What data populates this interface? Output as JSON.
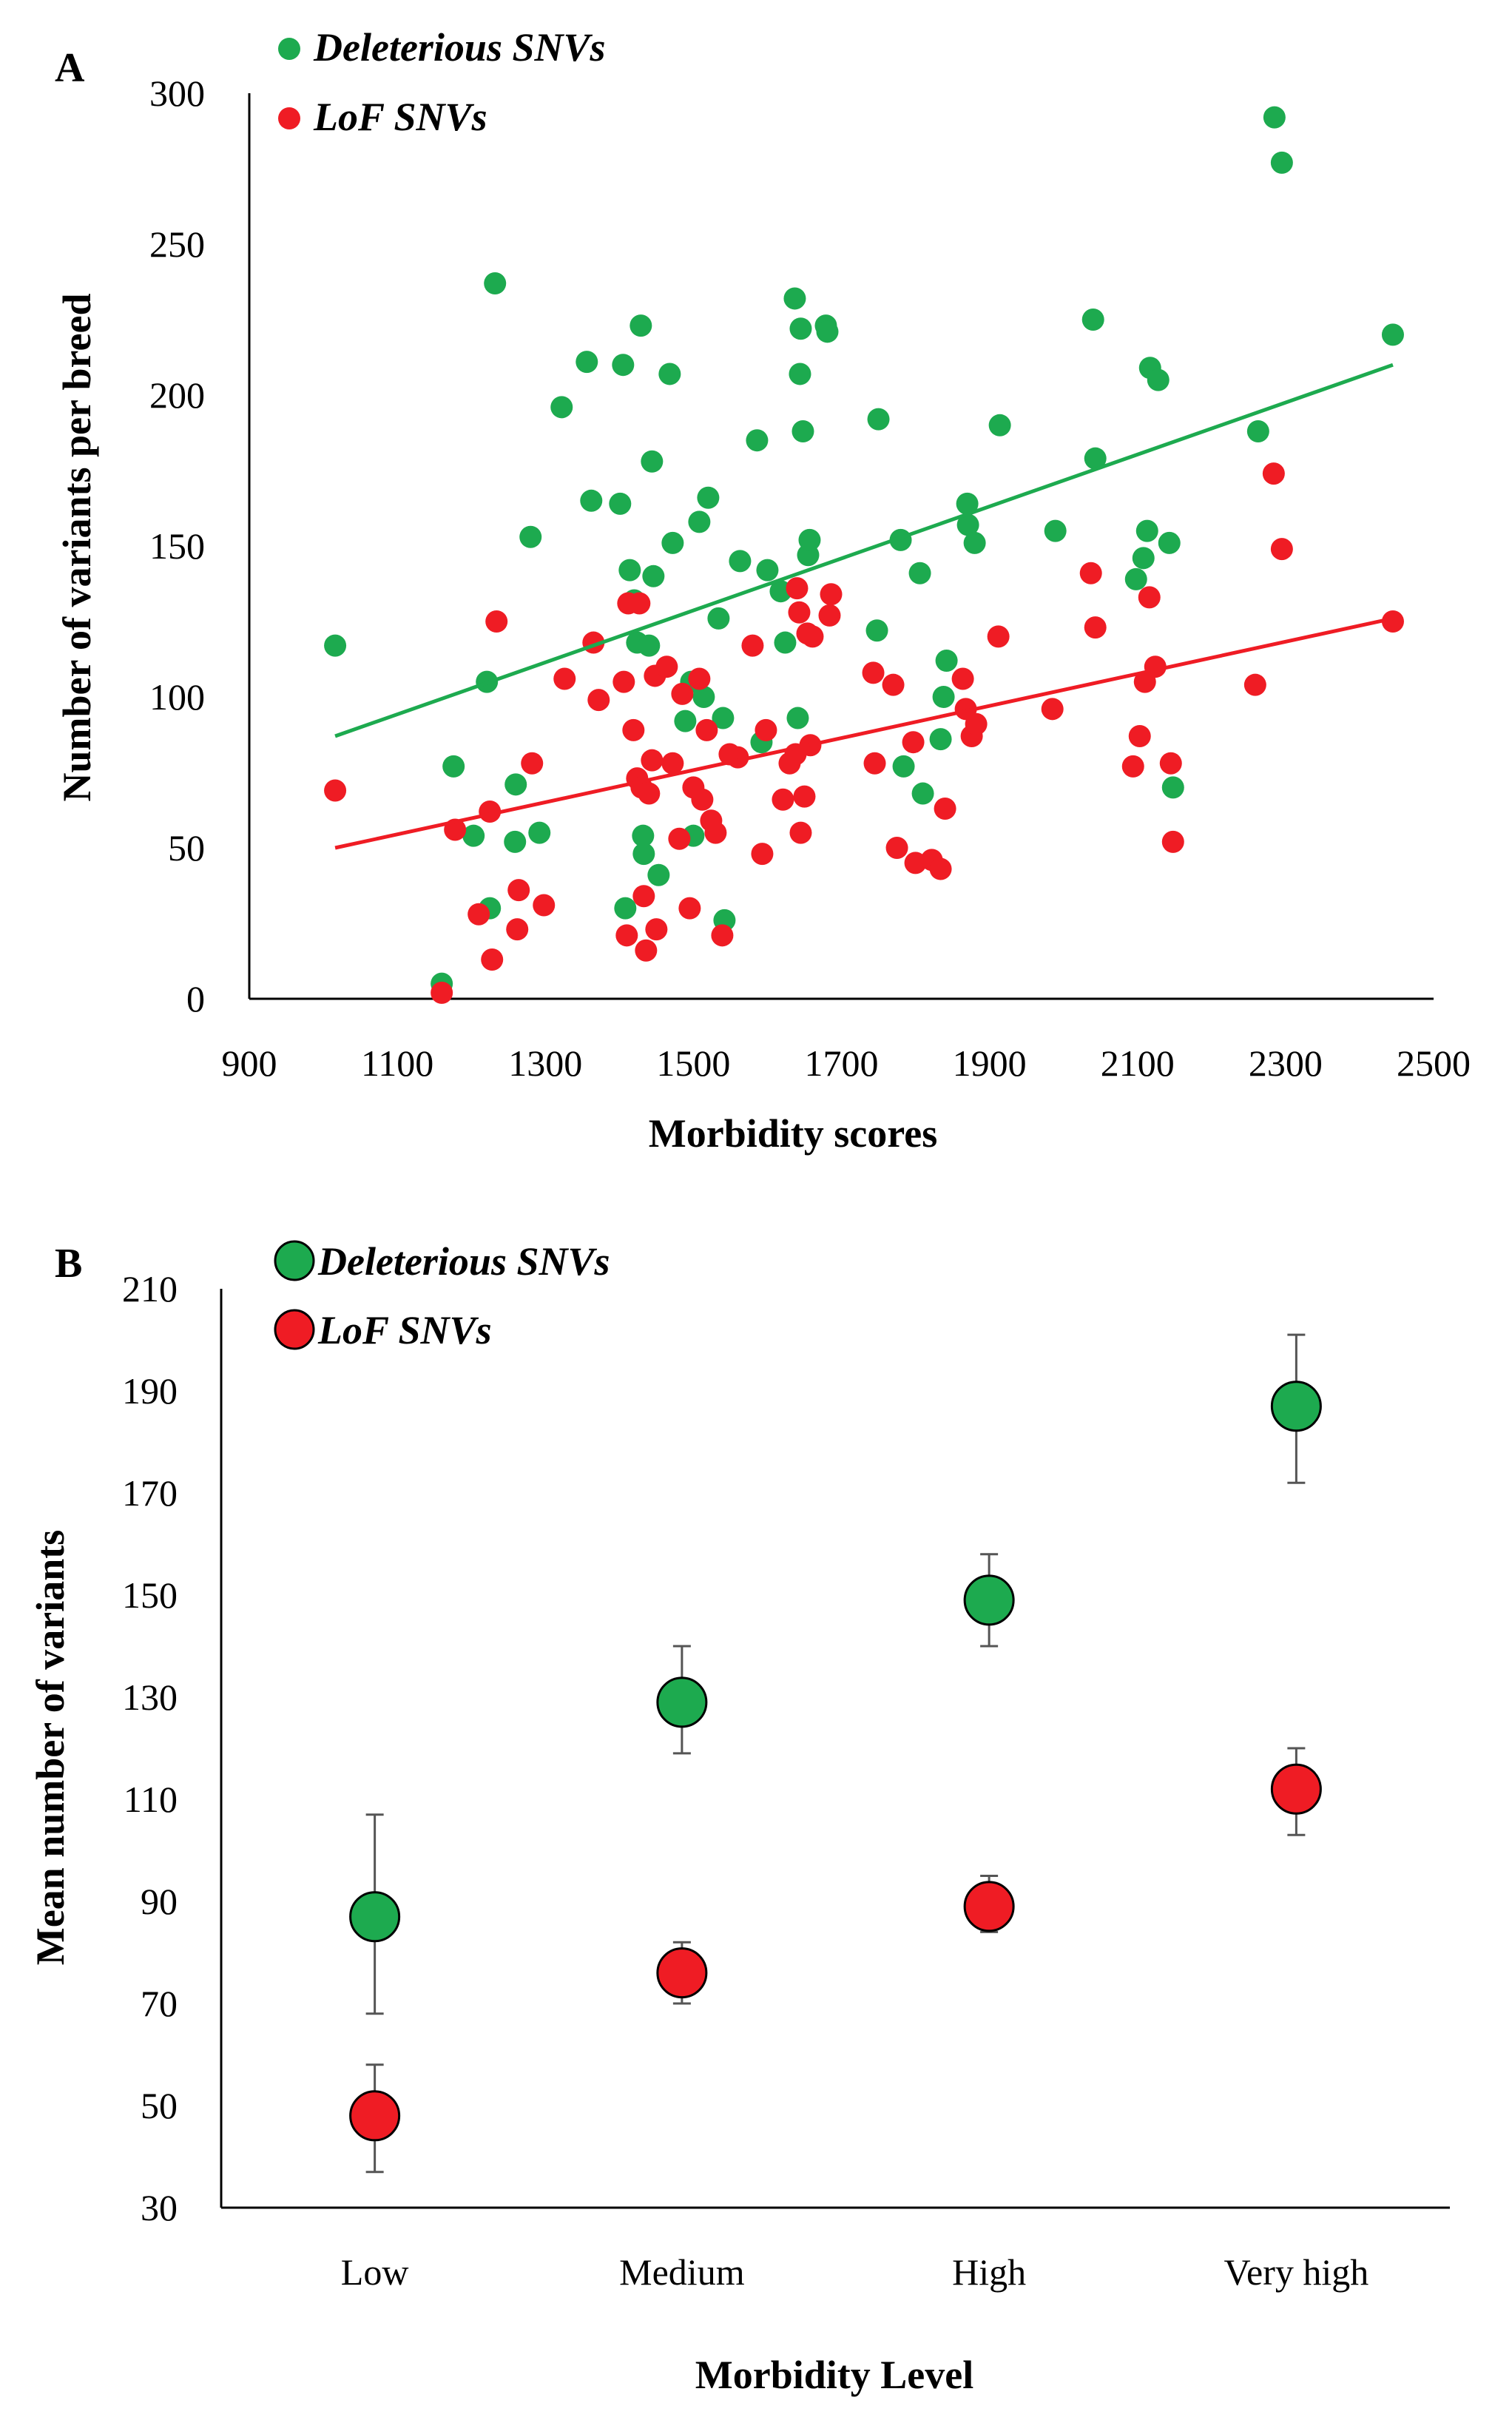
{
  "panel_a": {
    "label": "A"
  },
  "panel_b": {
    "label": "B"
  },
  "colors": {
    "deleterious": "#1daa4f",
    "lof": "#ef1c24",
    "axis": "#000000",
    "errorbar": "#555555"
  },
  "chart_data": [
    {
      "type": "scatter",
      "panel": "A",
      "title": "",
      "xlabel": "Morbidity scores",
      "ylabel": "Number of variants per breed",
      "xlim": [
        900,
        2500
      ],
      "ylim": [
        0,
        300
      ],
      "xticks": [
        900,
        1100,
        1300,
        1500,
        1700,
        1900,
        2100,
        2300,
        2500
      ],
      "yticks": [
        0,
        50,
        100,
        150,
        200,
        250,
        300
      ],
      "legend": [
        "Deleterious SNVs",
        "LoF SNVs"
      ],
      "series": [
        {
          "name": "Deleterious SNVs",
          "color": "#1daa4f",
          "trend": [
            [
              1016,
              87
            ],
            [
              2445,
              210
            ]
          ],
          "points": [
            [
              1016,
              117
            ],
            [
              1160,
              5
            ],
            [
              1176,
              77
            ],
            [
              1203,
              54
            ],
            [
              1221,
              105
            ],
            [
              1225,
              30
            ],
            [
              1232,
              237
            ],
            [
              1259,
              52
            ],
            [
              1260,
              71
            ],
            [
              1280,
              153
            ],
            [
              1292,
              55
            ],
            [
              1322,
              196
            ],
            [
              1356,
              211
            ],
            [
              1362,
              165
            ],
            [
              1401,
              164
            ],
            [
              1405,
              210
            ],
            [
              1408,
              30
            ],
            [
              1414,
              142
            ],
            [
              1420,
              132
            ],
            [
              1424,
              118
            ],
            [
              1429,
              223
            ],
            [
              1432,
              54
            ],
            [
              1433,
              48
            ],
            [
              1440,
              117
            ],
            [
              1444,
              178
            ],
            [
              1446,
              140
            ],
            [
              1453,
              41
            ],
            [
              1468,
              207
            ],
            [
              1472,
              151
            ],
            [
              1489,
              92
            ],
            [
              1497,
              105
            ],
            [
              1500,
              54
            ],
            [
              1508,
              158
            ],
            [
              1514,
              100
            ],
            [
              1520,
              166
            ],
            [
              1534,
              126
            ],
            [
              1540,
              93
            ],
            [
              1542,
              26
            ],
            [
              1563,
              145
            ],
            [
              1586,
              185
            ],
            [
              1592,
              85
            ],
            [
              1600,
              142
            ],
            [
              1618,
              135
            ],
            [
              1624,
              118
            ],
            [
              1637,
              232
            ],
            [
              1641,
              93
            ],
            [
              1644,
              207
            ],
            [
              1645,
              222
            ],
            [
              1648,
              188
            ],
            [
              1655,
              147
            ],
            [
              1657,
              152
            ],
            [
              1679,
              223
            ],
            [
              1681,
              221
            ],
            [
              1748,
              122
            ],
            [
              1750,
              192
            ],
            [
              1780,
              152
            ],
            [
              1784,
              77
            ],
            [
              1806,
              141
            ],
            [
              1810,
              68
            ],
            [
              1834,
              86
            ],
            [
              1838,
              100
            ],
            [
              1842,
              112
            ],
            [
              1870,
              164
            ],
            [
              1871,
              157
            ],
            [
              1880,
              151
            ],
            [
              1914,
              190
            ],
            [
              1989,
              155
            ],
            [
              2040,
              225
            ],
            [
              2043,
              179
            ],
            [
              2098,
              139
            ],
            [
              2108,
              146
            ],
            [
              2113,
              155
            ],
            [
              2117,
              209
            ],
            [
              2128,
              205
            ],
            [
              2143,
              151
            ],
            [
              2148,
              70
            ],
            [
              2263,
              188
            ],
            [
              2285,
              292
            ],
            [
              2295,
              277
            ],
            [
              2445,
              220
            ]
          ]
        },
        {
          "name": "LoF SNVs",
          "color": "#ef1c24",
          "trend": [
            [
              1016,
              50
            ],
            [
              2445,
              126
            ]
          ],
          "points": [
            [
              1016,
              69
            ],
            [
              1160,
              2
            ],
            [
              1178,
              56
            ],
            [
              1210,
              28
            ],
            [
              1225,
              62
            ],
            [
              1228,
              13
            ],
            [
              1234,
              125
            ],
            [
              1262,
              23
            ],
            [
              1264,
              36
            ],
            [
              1282,
              78
            ],
            [
              1298,
              31
            ],
            [
              1326,
              106
            ],
            [
              1365,
              118
            ],
            [
              1372,
              99
            ],
            [
              1406,
              105
            ],
            [
              1410,
              21
            ],
            [
              1412,
              131
            ],
            [
              1419,
              89
            ],
            [
              1424,
              73
            ],
            [
              1427,
              131
            ],
            [
              1430,
              70
            ],
            [
              1433,
              34
            ],
            [
              1436,
              16
            ],
            [
              1440,
              68
            ],
            [
              1444,
              79
            ],
            [
              1448,
              107
            ],
            [
              1450,
              23
            ],
            [
              1464,
              110
            ],
            [
              1472,
              78
            ],
            [
              1481,
              53
            ],
            [
              1485,
              101
            ],
            [
              1495,
              30
            ],
            [
              1500,
              70
            ],
            [
              1508,
              106
            ],
            [
              1512,
              66
            ],
            [
              1518,
              89
            ],
            [
              1524,
              59
            ],
            [
              1530,
              55
            ],
            [
              1539,
              21
            ],
            [
              1549,
              81
            ],
            [
              1560,
              80
            ],
            [
              1580,
              117
            ],
            [
              1593,
              48
            ],
            [
              1598,
              89
            ],
            [
              1621,
              66
            ],
            [
              1630,
              78
            ],
            [
              1638,
              81
            ],
            [
              1640,
              136
            ],
            [
              1643,
              128
            ],
            [
              1645,
              55
            ],
            [
              1650,
              67
            ],
            [
              1654,
              121
            ],
            [
              1658,
              84
            ],
            [
              1661,
              120
            ],
            [
              1684,
              127
            ],
            [
              1686,
              134
            ],
            [
              1743,
              108
            ],
            [
              1745,
              78
            ],
            [
              1770,
              104
            ],
            [
              1775,
              50
            ],
            [
              1797,
              85
            ],
            [
              1800,
              45
            ],
            [
              1822,
              46
            ],
            [
              1834,
              43
            ],
            [
              1840,
              63
            ],
            [
              1864,
              106
            ],
            [
              1868,
              96
            ],
            [
              1876,
              87
            ],
            [
              1882,
              91
            ],
            [
              1912,
              120
            ],
            [
              1985,
              96
            ],
            [
              2037,
              141
            ],
            [
              2043,
              123
            ],
            [
              2094,
              77
            ],
            [
              2103,
              87
            ],
            [
              2110,
              105
            ],
            [
              2116,
              133
            ],
            [
              2124,
              110
            ],
            [
              2145,
              78
            ],
            [
              2148,
              52
            ],
            [
              2259,
              104
            ],
            [
              2284,
              174
            ],
            [
              2295,
              149
            ],
            [
              2445,
              125
            ]
          ]
        }
      ]
    },
    {
      "type": "scatter",
      "panel": "B",
      "title": "",
      "xlabel": "Morbidity Level",
      "ylabel": "Mean number of variants",
      "categories": [
        "Low",
        "Medium",
        "High",
        "Very high"
      ],
      "ylim": [
        30,
        210
      ],
      "yticks": [
        30,
        50,
        70,
        90,
        110,
        130,
        150,
        170,
        190,
        210
      ],
      "legend": [
        "Deleterious SNVs",
        "LoF SNVs"
      ],
      "series": [
        {
          "name": "Deleterious SNVs",
          "color": "#1daa4f",
          "values": [
            87,
            129,
            149,
            187
          ],
          "err_low": [
            68,
            119,
            140,
            172
          ],
          "err_high": [
            107,
            140,
            158,
            201
          ]
        },
        {
          "name": "LoF SNVs",
          "color": "#ef1c24",
          "values": [
            48,
            76,
            89,
            112
          ],
          "err_low": [
            37,
            70,
            84,
            103
          ],
          "err_high": [
            58,
            82,
            95,
            120
          ]
        }
      ]
    }
  ]
}
